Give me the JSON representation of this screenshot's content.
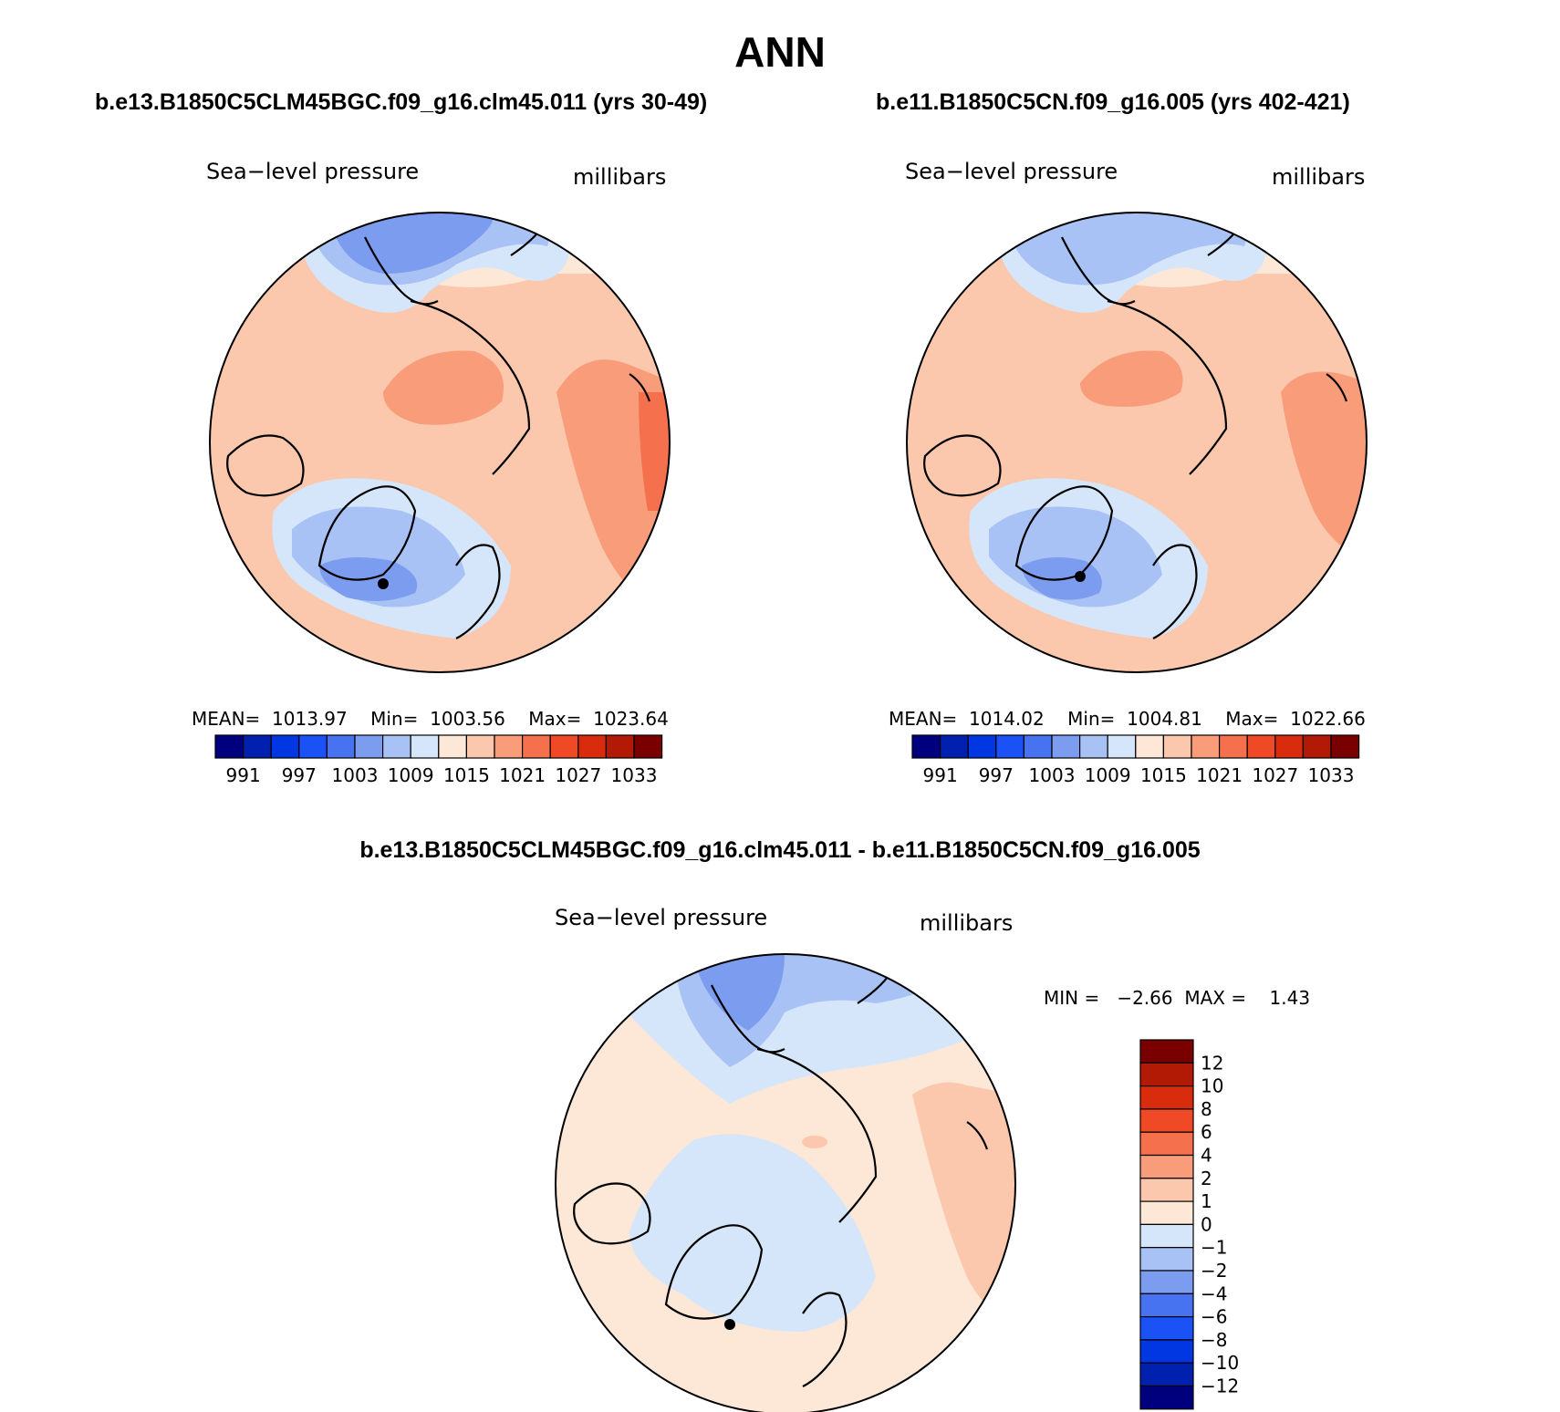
{
  "page": {
    "title": "ANN"
  },
  "colors": {
    "abs_scale": [
      "#00007f",
      "#0021b0",
      "#0037e3",
      "#1a52f5",
      "#4773f0",
      "#7c9cf0",
      "#a9c2f5",
      "#d6e6fa",
      "#fde7d7",
      "#fbc7ad",
      "#f89c79",
      "#f5714d",
      "#ef4a25",
      "#d82c0c",
      "#b21a05",
      "#7a0000"
    ],
    "diff_scale": [
      "#00007f",
      "#0021b0",
      "#0037e3",
      "#1a52f5",
      "#4773f0",
      "#7c9cf0",
      "#a9c2f5",
      "#d6e6fa",
      "#fde7d7",
      "#fbc7ad",
      "#f89c79",
      "#f5714d",
      "#ef4a25",
      "#d82c0c",
      "#b21a05",
      "#7a0000"
    ]
  },
  "panels": {
    "left": {
      "case_title": "b.e13.B1850C5CLM45BGC.f09_g16.clm45.011 (yrs 30-49)",
      "variable": "Sea−level pressure",
      "units": "millibars",
      "stats": {
        "mean_label": "MEAN=",
        "mean": "1013.97",
        "min_label": "Min=",
        "min": "1003.56",
        "max_label": "Max=",
        "max": "1023.64"
      },
      "colorbar_ticks": [
        "991",
        "997",
        "1003",
        "1009",
        "1015",
        "1021",
        "1027",
        "1033"
      ]
    },
    "right": {
      "case_title": "b.e11.B1850C5CN.f09_g16.005 (yrs 402-421)",
      "variable": "Sea−level pressure",
      "units": "millibars",
      "stats": {
        "mean_label": "MEAN=",
        "mean": "1014.02",
        "min_label": "Min=",
        "min": "1004.81",
        "max_label": "Max=",
        "max": "1022.66"
      },
      "colorbar_ticks": [
        "991",
        "997",
        "1003",
        "1009",
        "1015",
        "1021",
        "1027",
        "1033"
      ]
    },
    "diff": {
      "case_title": "b.e13.B1850C5CLM45BGC.f09_g16.clm45.011 - b.e11.B1850C5CN.f09_g16.005",
      "variable": "Sea−level pressure",
      "units": "millibars",
      "stats": {
        "min_label": "MIN =",
        "min": "−2.66",
        "max_label": "MAX =",
        "max": "1.43"
      },
      "colorbar_ticks": [
        "12",
        "10",
        "8",
        "6",
        "4",
        "2",
        "1",
        "0",
        "−1",
        "−2",
        "−4",
        "−6",
        "−8",
        "−10",
        "−12"
      ]
    }
  },
  "chart_data": [
    {
      "type": "heatmap",
      "projection": "north polar stereographic",
      "title": "b.e13.B1850C5CLM45BGC.f09_g16.clm45.011 (yrs 30-49)",
      "variable": "Sea-level pressure",
      "units": "millibars",
      "mean": 1013.97,
      "min": 1003.56,
      "max": 1023.64,
      "contour_levels": [
        991,
        994,
        997,
        1000,
        1003,
        1006,
        1009,
        1012,
        1015,
        1018,
        1021,
        1024,
        1027,
        1030,
        1033
      ]
    },
    {
      "type": "heatmap",
      "projection": "north polar stereographic",
      "title": "b.e11.B1850C5CN.f09_g16.005 (yrs 402-421)",
      "variable": "Sea-level pressure",
      "units": "millibars",
      "mean": 1014.02,
      "min": 1004.81,
      "max": 1022.66,
      "contour_levels": [
        991,
        994,
        997,
        1000,
        1003,
        1006,
        1009,
        1012,
        1015,
        1018,
        1021,
        1024,
        1027,
        1030,
        1033
      ]
    },
    {
      "type": "heatmap",
      "projection": "north polar stereographic",
      "title": "b.e13.B1850C5CLM45BGC.f09_g16.clm45.011 - b.e11.B1850C5CN.f09_g16.005",
      "variable": "Sea-level pressure",
      "units": "millibars",
      "min": -2.66,
      "max": 1.43,
      "contour_levels": [
        -12,
        -10,
        -8,
        -6,
        -4,
        -2,
        -1,
        0,
        1,
        2,
        4,
        6,
        8,
        10,
        12
      ]
    }
  ]
}
